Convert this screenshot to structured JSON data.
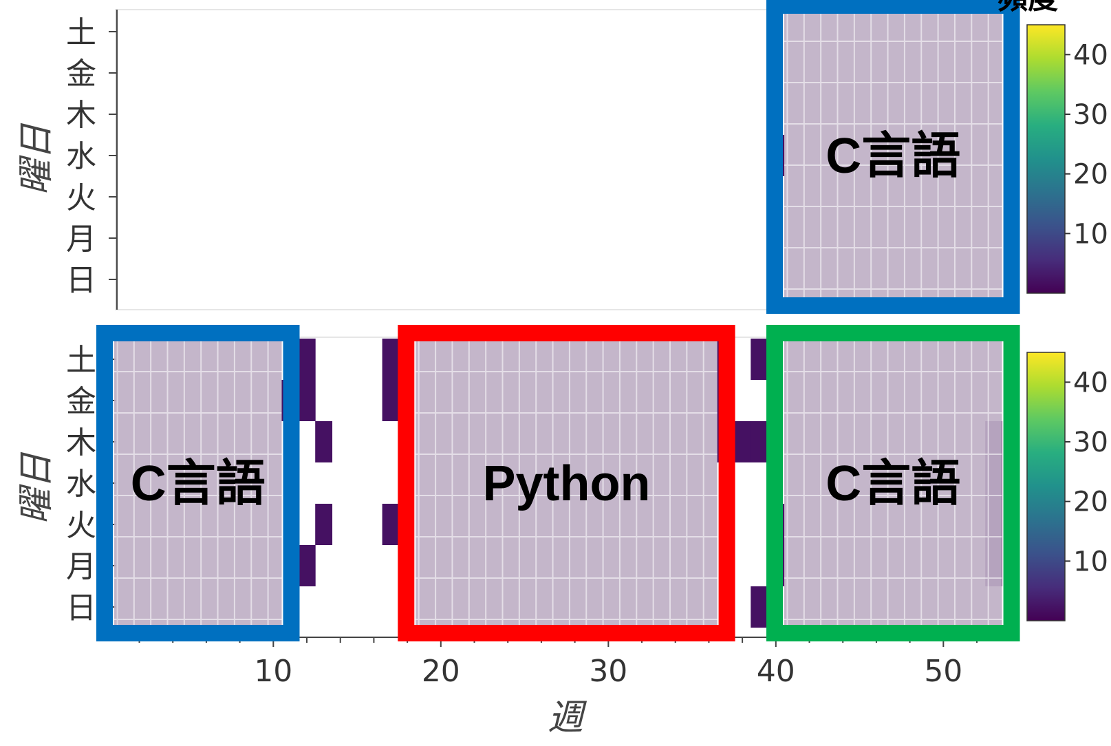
{
  "chart_data": [
    {
      "type": "heatmap",
      "panel": "top",
      "ylabel": "曜日",
      "y_categories": [
        "日",
        "月",
        "火",
        "水",
        "木",
        "金",
        "土"
      ],
      "x_range": [
        1,
        53
      ],
      "color_range": [
        0,
        45
      ],
      "colorscale": "viridis",
      "colorbar_ticks": [
        "10",
        "20",
        "30",
        "40"
      ],
      "cells": [
        {
          "week": 40,
          "day": "水",
          "value": 2
        }
      ],
      "highlights": [
        {
          "label": "C言語",
          "color": "#0070c0",
          "week_range": [
            41,
            53
          ]
        }
      ]
    },
    {
      "type": "heatmap",
      "panel": "bottom",
      "xlabel": "週",
      "ylabel": "曜日",
      "y_categories": [
        "日",
        "月",
        "火",
        "水",
        "木",
        "金",
        "土"
      ],
      "x_range": [
        1,
        53
      ],
      "x_ticks": [
        "10",
        "20",
        "30",
        "40",
        "50"
      ],
      "color_range": [
        0,
        45
      ],
      "colorscale": "viridis",
      "colorbar_ticks": [
        "10",
        "20",
        "30",
        "40"
      ],
      "cells": [
        {
          "week": 11,
          "day": "金",
          "value": 2
        },
        {
          "week": 12,
          "day": "土",
          "value": 2
        },
        {
          "week": 12,
          "day": "金",
          "value": 2
        },
        {
          "week": 12,
          "day": "月",
          "value": 2
        },
        {
          "week": 13,
          "day": "木",
          "value": 2
        },
        {
          "week": 13,
          "day": "火",
          "value": 2
        },
        {
          "week": 17,
          "day": "土",
          "value": 2
        },
        {
          "week": 17,
          "day": "金",
          "value": 2
        },
        {
          "week": 17,
          "day": "火",
          "value": 2
        },
        {
          "week": 37,
          "day": "土",
          "value": 2
        },
        {
          "week": 37,
          "day": "金",
          "value": 2
        },
        {
          "week": 37,
          "day": "木",
          "value": 2
        },
        {
          "week": 38,
          "day": "木",
          "value": 2
        },
        {
          "week": 39,
          "day": "土",
          "value": 2
        },
        {
          "week": 39,
          "day": "木",
          "value": 2
        },
        {
          "week": 39,
          "day": "日",
          "value": 2
        },
        {
          "week": 40,
          "day": "火",
          "value": 2
        },
        {
          "week": 40,
          "day": "月",
          "value": 2
        },
        {
          "week": 53,
          "day": "木",
          "value": 2
        },
        {
          "week": 53,
          "day": "水",
          "value": 2
        },
        {
          "week": 53,
          "day": "火",
          "value": 2
        },
        {
          "week": 53,
          "day": "月",
          "value": 2
        }
      ],
      "highlights": [
        {
          "label": "C言語",
          "color": "#0070c0",
          "week_range": [
            1,
            10
          ]
        },
        {
          "label": "Python",
          "color": "#ff0000",
          "week_range": [
            19,
            36
          ]
        },
        {
          "label": "C言語",
          "color": "#00b050",
          "week_range": [
            41,
            53
          ]
        }
      ]
    }
  ],
  "colorbar_title": "頻度"
}
